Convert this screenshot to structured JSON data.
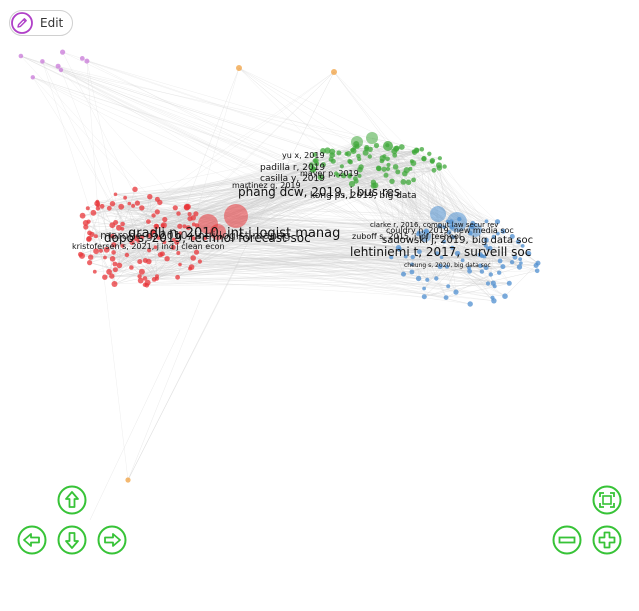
{
  "toolbar": {
    "edit_label": "Edit",
    "edit_icon": "pencil-icon"
  },
  "colors": {
    "red_cluster": "#e8363a",
    "green_cluster": "#3fa83a",
    "blue_cluster": "#4f8fd0",
    "purple_cluster": "#c878d8",
    "orange_cluster": "#f0a040",
    "nav_buttons": "#37c337",
    "edge": "#cfcfcf"
  },
  "network": {
    "labels": {
      "red": [
        "gradli n, 2010, int j logist manag",
        "marohe g, 2010, int j logist manag",
        "dopo s, 2019, technol forecast soc",
        "kristofersen s, 2021, j ind j clean econ"
      ],
      "green": [
        "phang dcw, 2019, j bus res",
        "padilla r, 2019",
        "yu x, 2019",
        "martinez g, 2019",
        "casilla y, 2019",
        "mayer p, 2019",
        "kong ps, 2019, big data"
      ],
      "blue": [
        "lehtiniemi t, 2017, surveill soc",
        "sadowski j, 2019, big data soc",
        "clarke r, 2016, comput law secur rev",
        "couldry n, 2019, new media soc",
        "zuboff s, 2015, j inf technol",
        "cheung s, 2020, big data soc"
      ]
    }
  },
  "navigation": {
    "up": "arrow-up-icon",
    "down": "arrow-down-icon",
    "left": "arrow-left-icon",
    "right": "arrow-right-icon",
    "fit": "fit-screen-icon",
    "zoom_out": "zoom-out-icon",
    "zoom_in": "zoom-in-icon"
  }
}
